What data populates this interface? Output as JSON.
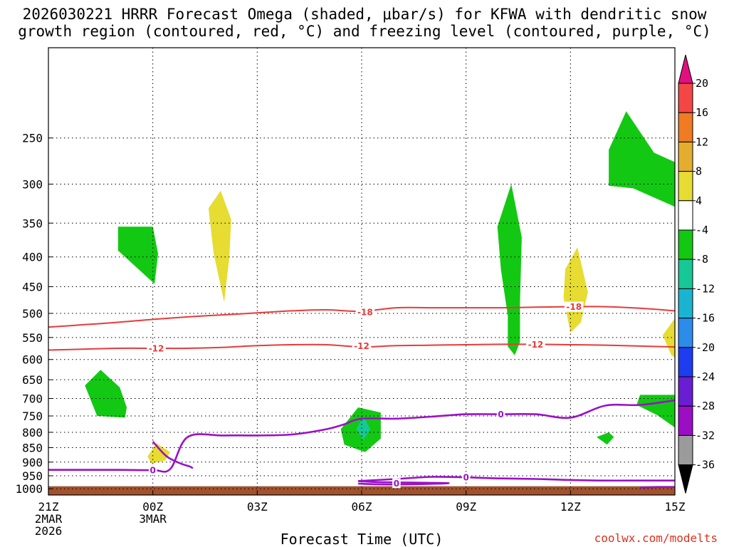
{
  "title": "2026030221 HRRR Forecast Omega (shaded, μbar/s) for KFWA with dendritic snow\ngrowth region (contoured, red, °C) and freezing level (contoured, purple, °C)",
  "credit": "coolwx.com/modelts",
  "chart_data": {
    "type": "heatmap",
    "xlabel": "Forecast Time (UTC)",
    "ylabel": "",
    "x_range_hours": [
      0,
      18
    ],
    "y_range_hpa": [
      1025,
      175
    ],
    "y_ticks": [
      250,
      300,
      350,
      400,
      450,
      500,
      550,
      600,
      650,
      700,
      750,
      800,
      850,
      900,
      950,
      1000
    ],
    "x_ticks": [
      {
        "hour": 0,
        "lines": [
          "21Z",
          "2MAR",
          "2026"
        ]
      },
      {
        "hour": 3,
        "lines": [
          "00Z",
          "3MAR"
        ]
      },
      {
        "hour": 6,
        "lines": [
          "03Z"
        ]
      },
      {
        "hour": 9,
        "lines": [
          "06Z"
        ]
      },
      {
        "hour": 12,
        "lines": [
          "09Z"
        ]
      },
      {
        "hour": 15,
        "lines": [
          "12Z"
        ]
      },
      {
        "hour": 18,
        "lines": [
          "15Z"
        ]
      }
    ],
    "grid": true,
    "colorbar": {
      "placement": "right",
      "ticks": [
        "20",
        "16",
        "12",
        "8",
        "4",
        "-4",
        "-8",
        "-12",
        "-16",
        "-20",
        "-24",
        "-28",
        "-32",
        "-36"
      ],
      "bins": [
        {
          "from": 20,
          "to": null,
          "color": "#e0117f"
        },
        {
          "from": 16,
          "to": 20,
          "color": "#f54646"
        },
        {
          "from": 12,
          "to": 16,
          "color": "#f07b22"
        },
        {
          "from": 8,
          "to": 12,
          "color": "#e5ad2e"
        },
        {
          "from": 4,
          "to": 8,
          "color": "#e6dc32"
        },
        {
          "from": -4,
          "to": 4,
          "color": "#ffffff"
        },
        {
          "from": -8,
          "to": -4,
          "color": "#13c813"
        },
        {
          "from": -12,
          "to": -8,
          "color": "#16c896"
        },
        {
          "from": -16,
          "to": -12,
          "color": "#1ab4d2"
        },
        {
          "from": -20,
          "to": -16,
          "color": "#2b8ceb"
        },
        {
          "from": -24,
          "to": -20,
          "color": "#1e3cf0"
        },
        {
          "from": -28,
          "to": -24,
          "color": "#6a1ed2"
        },
        {
          "from": -32,
          "to": -28,
          "color": "#9b0fc4"
        },
        {
          "from": -36,
          "to": -32,
          "color": "#9b9b9b"
        },
        {
          "from": null,
          "to": -36,
          "color": "#000000"
        }
      ]
    },
    "omega_regions": [
      {
        "bin": -6,
        "color": "#13c813",
        "points": [
          [
            2,
            355
          ],
          [
            3,
            355
          ],
          [
            3.15,
            395
          ],
          [
            3.05,
            445
          ],
          [
            2,
            390
          ]
        ]
      },
      {
        "bin": 6,
        "color": "#e6dc32",
        "points": [
          [
            4.6,
            330
          ],
          [
            4.95,
            308
          ],
          [
            5.25,
            345
          ],
          [
            5.2,
            400
          ],
          [
            5.05,
            478
          ],
          [
            4.75,
            395
          ]
        ]
      },
      {
        "bin": -6,
        "color": "#13c813",
        "points": [
          [
            1.05,
            665
          ],
          [
            1.5,
            625
          ],
          [
            2.05,
            670
          ],
          [
            2.25,
            725
          ],
          [
            2.2,
            755
          ],
          [
            1.4,
            750
          ]
        ]
      },
      {
        "bin": 6,
        "color": "#e6dc32",
        "points": [
          [
            2.85,
            880
          ],
          [
            3.1,
            835
          ],
          [
            3.5,
            865
          ],
          [
            3.35,
            895
          ],
          [
            2.95,
            905
          ]
        ]
      },
      {
        "bin": -6,
        "color": "#13c813",
        "points": [
          [
            8.4,
            790
          ],
          [
            8.9,
            725
          ],
          [
            9.55,
            740
          ],
          [
            9.55,
            820
          ],
          [
            9.1,
            865
          ],
          [
            8.5,
            840
          ]
        ]
      },
      {
        "bin": -10,
        "color": "#16c896",
        "points": [
          [
            8.85,
            790
          ],
          [
            9.05,
            750
          ],
          [
            9.25,
            790
          ],
          [
            9.05,
            825
          ]
        ]
      },
      {
        "bin": -6,
        "color": "#13c813",
        "points": [
          [
            12.9,
            355
          ],
          [
            13.3,
            300
          ],
          [
            13.6,
            370
          ],
          [
            13.55,
            480
          ],
          [
            13.55,
            560
          ],
          [
            13.4,
            590
          ],
          [
            13.2,
            570
          ],
          [
            13.2,
            505
          ],
          [
            13.0,
            420
          ]
        ]
      },
      {
        "bin": 6,
        "color": "#e6dc32",
        "points": [
          [
            14.85,
            420
          ],
          [
            15.2,
            385
          ],
          [
            15.5,
            460
          ],
          [
            15.3,
            518
          ],
          [
            15.0,
            540
          ],
          [
            14.8,
            470
          ]
        ]
      },
      {
        "bin": -6,
        "color": "#13c813",
        "points": [
          [
            16.1,
            262
          ],
          [
            16.6,
            225
          ],
          [
            17.4,
            265
          ],
          [
            18,
            275
          ],
          [
            18,
            328
          ],
          [
            16.8,
            305
          ],
          [
            16.1,
            302
          ]
        ]
      },
      {
        "bin": 6,
        "color": "#e6dc32",
        "points": [
          [
            18,
            510
          ],
          [
            17.65,
            545
          ],
          [
            17.9,
            590
          ],
          [
            18,
            595
          ]
        ]
      },
      {
        "bin": -6,
        "color": "#13c813",
        "points": [
          [
            17.0,
            690
          ],
          [
            18,
            690
          ],
          [
            18,
            785
          ],
          [
            17.5,
            748
          ],
          [
            16.9,
            718
          ]
        ]
      },
      {
        "bin": -6,
        "color": "#13c813",
        "points": [
          [
            15.75,
            815
          ],
          [
            16.1,
            800
          ],
          [
            16.25,
            815
          ],
          [
            16.05,
            840
          ]
        ]
      }
    ],
    "series": [
      {
        "name": "-18",
        "color": "#e83a3a",
        "x": [
          0,
          1,
          2,
          3,
          4,
          5,
          6,
          7,
          8,
          9,
          10,
          11,
          12,
          13,
          14,
          15,
          16,
          17,
          18
        ],
        "y": [
          528,
          523,
          518,
          512,
          507,
          503,
          499,
          495,
          493,
          496,
          489,
          489,
          489,
          489,
          488,
          487,
          487,
          490,
          495
        ]
      },
      {
        "name": "-12",
        "color": "#e83a3a",
        "x": [
          0,
          1,
          2,
          3,
          4,
          5,
          6,
          7,
          8,
          9,
          10,
          11,
          12,
          13,
          14,
          15,
          16,
          17,
          18
        ],
        "y": [
          578,
          576,
          574,
          574,
          574,
          572,
          568,
          566,
          566,
          571,
          568,
          567,
          566,
          565,
          565,
          566,
          567,
          569,
          571
        ]
      },
      {
        "name": "0",
        "color": "#9b10c8",
        "x": [
          0,
          1,
          2,
          3,
          3.5,
          4,
          5,
          6,
          7,
          8,
          8.5,
          9,
          10,
          11,
          12,
          13,
          14,
          15,
          16,
          17,
          18
        ],
        "y": [
          928,
          928,
          928,
          929,
          925,
          815,
          810,
          810,
          807,
          790,
          775,
          758,
          758,
          752,
          745,
          745,
          745,
          755,
          720,
          718,
          705
        ]
      },
      {
        "name": "0",
        "color": "#9b10c8",
        "x": [
          3,
          3.4,
          3.8,
          4.05,
          4.15
        ],
        "y": [
          830,
          880,
          905,
          915,
          922
        ]
      },
      {
        "name": "0",
        "color": "#9b10c8",
        "x": [
          8.9,
          10,
          11,
          12,
          13,
          14,
          15,
          16,
          17,
          18
        ],
        "y": [
          970,
          962,
          954,
          956,
          960,
          962,
          966,
          968,
          968,
          968
        ]
      },
      {
        "name": "0",
        "color": "#9b10c8",
        "x": [
          8.9,
          9.5,
          10.5,
          11.5,
          10.6,
          9.6,
          8.9
        ],
        "y": [
          970,
          974,
          976,
          978,
          982,
          983,
          980
        ]
      },
      {
        "name": "0",
        "color": "#9b10c8",
        "x": [
          17,
          17.5,
          18
        ],
        "y": [
          995,
          993,
          993
        ]
      }
    ],
    "contour_labels": [
      {
        "text": "-18",
        "color": "#e83a3a",
        "x": 9.1,
        "y": 497
      },
      {
        "text": "-18",
        "color": "#e83a3a",
        "x": 15.1,
        "y": 487
      },
      {
        "text": "-12",
        "color": "#e83a3a",
        "x": 3.1,
        "y": 574
      },
      {
        "text": "-12",
        "color": "#e83a3a",
        "x": 9.0,
        "y": 568
      },
      {
        "text": "-12",
        "color": "#e83a3a",
        "x": 14.0,
        "y": 565
      },
      {
        "text": "0",
        "color": "#9b10c8",
        "x": 3.0,
        "y": 929
      },
      {
        "text": "0",
        "color": "#9b10c8",
        "x": 13.0,
        "y": 745
      },
      {
        "text": "0",
        "color": "#9b10c8",
        "x": 12.0,
        "y": 956
      },
      {
        "text": "0",
        "color": "#9b10c8",
        "x": 10.0,
        "y": 978
      }
    ],
    "terrain": {
      "color": "#a0522d",
      "pressure_hpa": 990
    }
  }
}
